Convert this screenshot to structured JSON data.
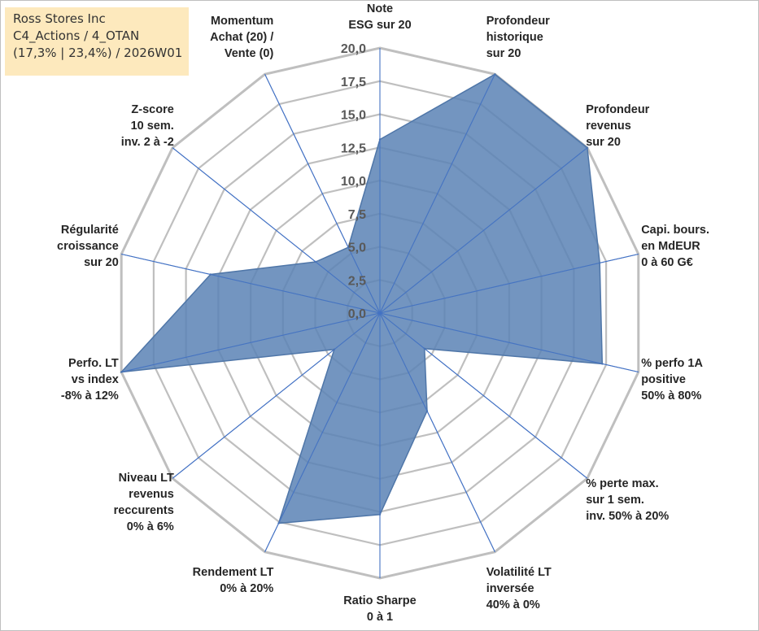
{
  "info": {
    "company": "Ross Stores Inc",
    "line2": "C4_Actions / 4_OTAN",
    "line3": "(17,3% | 23,4%) / 2026W01"
  },
  "colors": {
    "grid": "#bfbfbf",
    "spoke": "#4472c4",
    "fill": "#5b82b5",
    "stroke": "#4f76a8",
    "infobox": "#fde9bd"
  },
  "chart_data": {
    "type": "radar",
    "title": "",
    "rmin": 0,
    "rmax": 20,
    "tick_step": 2.5,
    "tick_labels": [
      "0,0",
      "2,5",
      "5,0",
      "7,5",
      "10,0",
      "12,5",
      "15,0",
      "17,5",
      "20,0"
    ],
    "axes": [
      {
        "label": [
          "Note",
          "ESG sur 20"
        ],
        "value": 13.1
      },
      {
        "label": [
          "Profondeur",
          "historique",
          "sur 20"
        ],
        "value": 20.0
      },
      {
        "label": [
          "Profondeur",
          "revenus",
          "sur 20"
        ],
        "value": 20.0
      },
      {
        "label": [
          "Capi. bours.",
          "en MdEUR",
          "0 à 60 G€"
        ],
        "value": 17.0
      },
      {
        "label": [
          "% perfo 1A",
          "positive",
          "50% à 80%"
        ],
        "value": 17.2
      },
      {
        "label": [
          "% perte max.",
          "sur 1 sem.",
          "inv. 50% à 20%"
        ],
        "value": 4.3
      },
      {
        "label": [
          "Volatilité LT",
          "inversée",
          "40% à 0%"
        ],
        "value": 8.2
      },
      {
        "label": [
          "Ratio Sharpe",
          "0 à 1"
        ],
        "value": 15.2
      },
      {
        "label": [
          "Rendement LT",
          "0% à 20%"
        ],
        "value": 17.6
      },
      {
        "label": [
          "Niveau LT",
          "revenus",
          "reccurents",
          "0% à 6%"
        ],
        "value": 4.4
      },
      {
        "label": [
          "Perfo. LT",
          "vs index",
          "-8% à 12%"
        ],
        "value": 20.0
      },
      {
        "label": [
          "Régularité",
          "croissance",
          "sur 20"
        ],
        "value": 13.1
      },
      {
        "label": [
          "Z-score",
          "10 sem.",
          "inv. 2 à -2"
        ],
        "value": 6.2
      },
      {
        "label": [
          "Momentum",
          "Achat (20) /",
          "Vente (0)"
        ],
        "value": 5.5
      }
    ]
  }
}
